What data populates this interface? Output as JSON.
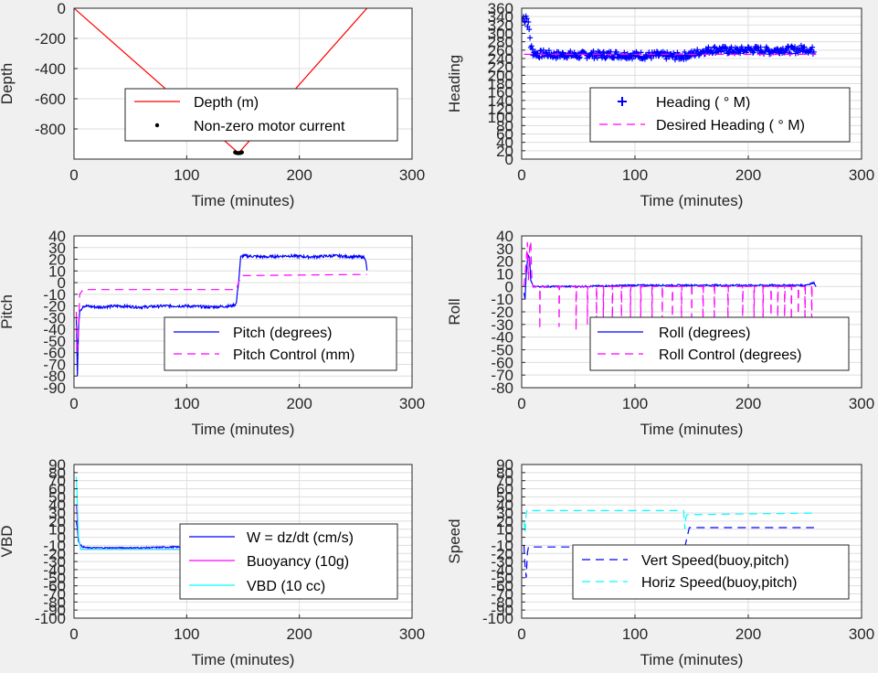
{
  "figure": {
    "background": "#f0f0f0"
  },
  "chart_data": [
    {
      "id": "depth",
      "type": "line",
      "xlabel": "Time (minutes)",
      "ylabel": "Depth",
      "xlim": [
        0,
        300
      ],
      "ylim": [
        -1000,
        0
      ],
      "xticks": [
        0,
        100,
        200,
        300
      ],
      "xtick_labels": [
        "0",
        "100",
        "200",
        "300"
      ],
      "yticks": [
        0,
        -200,
        -400,
        -600,
        -800
      ],
      "ytick_labels": [
        "0",
        "-200",
        "-400",
        "-600",
        "-800"
      ],
      "grid": true,
      "legend_location": "lower-center",
      "series": [
        {
          "name": "Depth (m)",
          "style": "line",
          "color": "#ff0000",
          "x": [
            0,
            146,
            260
          ],
          "y": [
            0,
            -960,
            0
          ]
        },
        {
          "name": "Non-zero motor current",
          "style": "dots",
          "color": "#000000",
          "x": [
            143,
            144,
            145,
            146,
            147,
            148,
            149
          ],
          "y": [
            -955,
            -958,
            -960,
            -960,
            -960,
            -958,
            -955
          ]
        }
      ]
    },
    {
      "id": "heading",
      "type": "scatter",
      "xlabel": "Time (minutes)",
      "ylabel": "Heading",
      "xlim": [
        0,
        300
      ],
      "ylim": [
        0,
        360
      ],
      "xticks": [
        0,
        100,
        200,
        300
      ],
      "xtick_labels": [
        "0",
        "100",
        "200",
        "300"
      ],
      "yticks": [
        0,
        20,
        40,
        60,
        80,
        100,
        120,
        140,
        160,
        180,
        200,
        220,
        240,
        260,
        280,
        300,
        320,
        340,
        360
      ],
      "ytick_labels": [
        "0",
        "20",
        "40",
        "60",
        "80",
        "100",
        "120",
        "140",
        "160",
        "180",
        "200",
        "220",
        "240",
        "260",
        "280",
        "300",
        "320",
        "340",
        "360"
      ],
      "grid": true,
      "legend_location": "lower-right",
      "series": [
        {
          "name": "Heading ( ° M)",
          "style": "plus",
          "color": "#0000ff",
          "x": [
            1,
            2,
            3,
            4,
            5,
            6,
            7,
            8,
            10,
            15,
            20,
            30,
            40,
            50,
            60,
            70,
            80,
            90,
            100,
            110,
            120,
            130,
            140,
            150,
            160,
            170,
            180,
            190,
            200,
            210,
            220,
            230,
            240,
            250,
            258
          ],
          "y": [
            335,
            340,
            330,
            345,
            325,
            320,
            300,
            270,
            255,
            250,
            252,
            248,
            250,
            247,
            250,
            248,
            250,
            249,
            248,
            247,
            248,
            246,
            245,
            250,
            258,
            262,
            260,
            258,
            262,
            260,
            258,
            262,
            260,
            264,
            258
          ],
          "spread": 9
        },
        {
          "name": "Desired Heading (  ° M)",
          "style": "dashed",
          "color": "#ff00ff",
          "x": [
            2,
            260
          ],
          "y": [
            250,
            250
          ]
        }
      ]
    },
    {
      "id": "pitch",
      "type": "line",
      "xlabel": "Time (minutes)",
      "ylabel": "Pitch",
      "xlim": [
        0,
        300
      ],
      "ylim": [
        -90,
        40
      ],
      "xticks": [
        0,
        100,
        200,
        300
      ],
      "xtick_labels": [
        "0",
        "100",
        "200",
        "300"
      ],
      "yticks": [
        40,
        30,
        20,
        10,
        0,
        -10,
        -20,
        -30,
        -40,
        -50,
        -60,
        -70,
        -80,
        -90
      ],
      "ytick_labels": [
        "40",
        "30",
        "20",
        "10",
        "0",
        "-10",
        "-20",
        "-30",
        "-40",
        "-50",
        "-60",
        "-70",
        "-80",
        "-90"
      ],
      "grid": true,
      "legend_location": "lower-right",
      "series": [
        {
          "name": "Pitch (degrees)",
          "style": "line",
          "color": "#0000ff",
          "x": [
            2,
            3,
            4,
            5,
            8,
            10,
            20,
            40,
            60,
            80,
            100,
            120,
            140,
            144,
            146,
            148,
            150,
            170,
            190,
            210,
            230,
            250,
            258,
            259,
            260
          ],
          "y": [
            -30,
            -80,
            -40,
            -25,
            -20,
            -20,
            -21,
            -20,
            -21,
            -20,
            -20,
            -21,
            -20,
            -18,
            0,
            22,
            23,
            22,
            23,
            22,
            23,
            22,
            22,
            18,
            10
          ],
          "noise": 1.2
        },
        {
          "name": "Pitch Control (mm)",
          "style": "dashed",
          "color": "#ff00ff",
          "x": [
            2,
            3,
            4,
            5,
            8,
            140,
            144,
            146,
            148,
            150,
            260
          ],
          "y": [
            -25,
            -60,
            -40,
            -10,
            -6,
            -6,
            -6,
            0,
            5,
            6,
            7
          ]
        }
      ]
    },
    {
      "id": "roll",
      "type": "line",
      "xlabel": "Time (minutes)",
      "ylabel": "Roll",
      "xlim": [
        0,
        300
      ],
      "ylim": [
        -80,
        40
      ],
      "xticks": [
        0,
        100,
        200,
        300
      ],
      "xtick_labels": [
        "0",
        "100",
        "200",
        "300"
      ],
      "yticks": [
        40,
        30,
        20,
        10,
        0,
        -10,
        -20,
        -30,
        -40,
        -50,
        -60,
        -70,
        -80
      ],
      "ytick_labels": [
        "40",
        "30",
        "20",
        "10",
        "0",
        "-10",
        "-20",
        "-30",
        "-40",
        "-50",
        "-60",
        "-70",
        "-80"
      ],
      "grid": true,
      "legend_location": "lower-right",
      "series": [
        {
          "name": "Roll (degrees)",
          "style": "line",
          "color": "#0000ff",
          "x": [
            2,
            3,
            4,
            5,
            6,
            7,
            8,
            10,
            50,
            100,
            150,
            200,
            250,
            258,
            260
          ],
          "y": [
            -5,
            -10,
            10,
            20,
            25,
            22,
            5,
            0,
            0,
            1,
            1,
            1,
            1,
            3,
            0
          ],
          "noise": 0.6
        },
        {
          "name": "Roll Control (degrees)",
          "style": "dashed",
          "color": "#ff00ff",
          "x": [
            2,
            4,
            5,
            6,
            7,
            8,
            9,
            10,
            12,
            260
          ],
          "y": [
            0,
            20,
            35,
            5,
            30,
            36,
            5,
            0,
            0,
            0
          ],
          "spikes": [
            16,
            33,
            48,
            58,
            66,
            72,
            80,
            88,
            96,
            105,
            115,
            124,
            133,
            141,
            150,
            160,
            170,
            182,
            195,
            205,
            213,
            220,
            226,
            232,
            238,
            244,
            250,
            256
          ],
          "spike_depth": [
            -34,
            -32,
            -35,
            -30,
            -33,
            -34,
            -31,
            -35,
            -30,
            -33,
            -34,
            -32,
            -35,
            -31,
            -30,
            -33,
            -34,
            -32,
            -35,
            -31,
            -33,
            -34,
            -30,
            -35,
            -32,
            -33,
            -34,
            -31
          ]
        }
      ]
    },
    {
      "id": "vbd",
      "type": "line",
      "xlabel": "Time (minutes)",
      "ylabel": "VBD",
      "xlim": [
        0,
        300
      ],
      "ylim": [
        -100,
        90
      ],
      "xticks": [
        0,
        100,
        200,
        300
      ],
      "xtick_labels": [
        "0",
        "100",
        "200",
        "300"
      ],
      "yticks": [
        90,
        80,
        70,
        60,
        50,
        40,
        30,
        20,
        10,
        0,
        -10,
        -20,
        -30,
        -40,
        -50,
        -60,
        -70,
        -80,
        -90,
        -100
      ],
      "ytick_labels": [
        "90",
        "80",
        "70",
        "60",
        "50",
        "40",
        "30",
        "20",
        "10",
        "0",
        "-10",
        "-20",
        "-30",
        "-40",
        "-50",
        "-60",
        "-70",
        "-80",
        "-90",
        "-100"
      ],
      "grid": true,
      "legend_location": "lower-right",
      "series": [
        {
          "name": "W = dz/dt (cm/s)",
          "style": "line",
          "color": "#0000ff",
          "x": [
            2,
            3,
            4,
            6,
            8,
            12,
            30,
            60,
            90,
            120,
            140,
            144,
            146,
            148,
            150,
            180,
            210,
            240,
            255,
            258,
            260
          ],
          "y": [
            20,
            10,
            -5,
            -10,
            -12,
            -13,
            -13,
            -13,
            -12,
            -13,
            -13,
            -10,
            0,
            13,
            14,
            14,
            14,
            14,
            14,
            14,
            13
          ],
          "noise": 0.8
        },
        {
          "name": "Buoyancy (10g)",
          "style": "line",
          "color": "#ff00ff",
          "x": [
            2,
            3,
            4,
            6,
            140,
            144,
            146,
            148,
            260
          ],
          "y": [
            40,
            20,
            0,
            -15,
            -15,
            -15,
            0,
            13,
            13
          ]
        },
        {
          "name": "VBD (10 cc)",
          "style": "line",
          "color": "#00ffff",
          "x": [
            2,
            3,
            4,
            6,
            140,
            144,
            146,
            148,
            260
          ],
          "y": [
            75,
            40,
            0,
            -15,
            -15,
            -15,
            0,
            12,
            12
          ]
        }
      ]
    },
    {
      "id": "speed",
      "type": "line",
      "xlabel": "Time (minutes)",
      "ylabel": "Speed",
      "xlim": [
        0,
        300
      ],
      "ylim": [
        -100,
        90
      ],
      "xticks": [
        0,
        100,
        200,
        300
      ],
      "xtick_labels": [
        "0",
        "100",
        "200",
        "300"
      ],
      "yticks": [
        90,
        80,
        70,
        60,
        50,
        40,
        30,
        20,
        10,
        0,
        -10,
        -20,
        -30,
        -40,
        -50,
        -60,
        -70,
        -80,
        -90,
        -100
      ],
      "ytick_labels": [
        "90",
        "80",
        "70",
        "60",
        "50",
        "40",
        "30",
        "20",
        "10",
        "0",
        "-10",
        "-20",
        "-30",
        "-40",
        "-50",
        "-60",
        "-70",
        "-80",
        "-90",
        "-100"
      ],
      "grid": true,
      "legend_location": "lower-right",
      "series": [
        {
          "name": "Vert Speed(buoy,pitch)",
          "style": "dashed",
          "color": "#0000ff",
          "x": [
            2,
            3,
            4,
            5,
            6,
            8,
            140,
            144,
            146,
            148,
            150,
            258
          ],
          "y": [
            -10,
            -35,
            -50,
            -20,
            -12,
            -12,
            -12,
            -12,
            0,
            12,
            12,
            12
          ]
        },
        {
          "name": "Horiz Speed(buoy,pitch)",
          "style": "dashed",
          "color": "#00ffff",
          "x": [
            2,
            3,
            4,
            5,
            6,
            8,
            140,
            143,
            144,
            145,
            146,
            150,
            258
          ],
          "y": [
            20,
            5,
            30,
            34,
            33,
            33,
            33,
            33,
            10,
            25,
            28,
            28,
            30
          ]
        }
      ]
    }
  ]
}
